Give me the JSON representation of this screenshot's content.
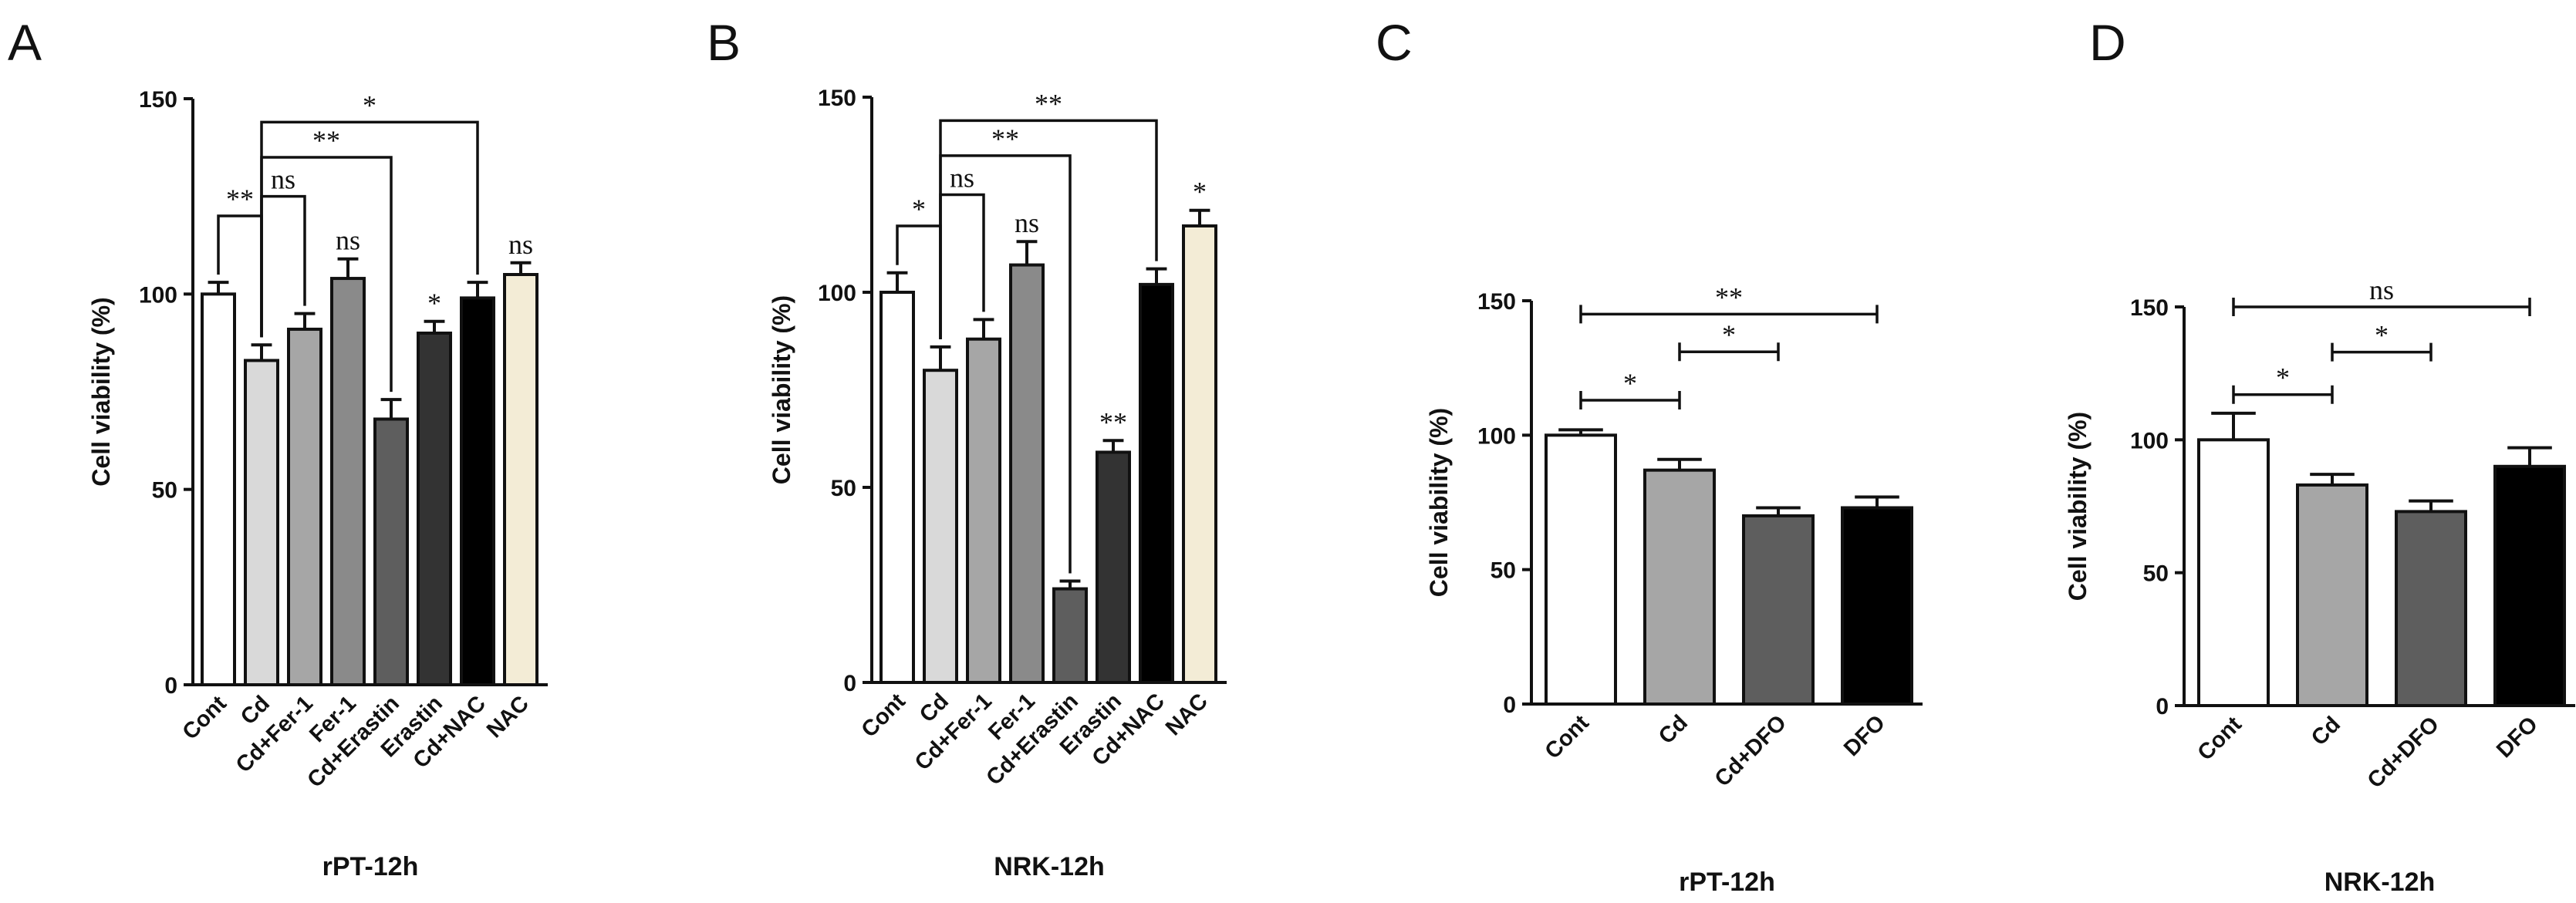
{
  "chart_data": [
    {
      "type": "bar",
      "panel_label": "A",
      "title": "",
      "xlabel": "rPT-12h",
      "ylabel": "Cell viability (%)",
      "ylim": [
        0,
        150
      ],
      "yticks": [
        0,
        50,
        100,
        150
      ],
      "grid": false,
      "categories": [
        "Cont",
        "Cd",
        "Cd+Fer-1",
        "Fer-1",
        "Cd+Erastin",
        "Erastin",
        "Cd+NAC",
        "NAC"
      ],
      "values": [
        100,
        83,
        91,
        104,
        68,
        90,
        99,
        105
      ],
      "errors": [
        3,
        4,
        4,
        5,
        5,
        3,
        4,
        3
      ],
      "colors": [
        "#ffffff",
        "#d9d9d9",
        "#a6a6a6",
        "#8a8a8a",
        "#5e5e5e",
        "#333333",
        "#000000",
        "#f3ecd6"
      ],
      "bar_annotations": [
        "",
        "",
        "",
        "ns",
        "",
        "*",
        "",
        "ns"
      ],
      "comparisons": [
        {
          "from": "Cont",
          "to": "Cd",
          "label": "**",
          "y": 120
        },
        {
          "from": "Cd",
          "to": "Cd+Fer-1",
          "label": "ns",
          "y": 125
        },
        {
          "from": "Cd",
          "to": "Cd+Erastin",
          "label": "**",
          "y": 135
        },
        {
          "from": "Cd",
          "to": "Cd+NAC",
          "label": "*",
          "y": 144
        }
      ]
    },
    {
      "type": "bar",
      "panel_label": "B",
      "title": "",
      "xlabel": "NRK-12h",
      "ylabel": "Cell viability (%)",
      "ylim": [
        0,
        150
      ],
      "yticks": [
        0,
        50,
        100,
        150
      ],
      "grid": false,
      "categories": [
        "Cont",
        "Cd",
        "Cd+Fer-1",
        "Fer-1",
        "Cd+Erastin",
        "Erastin",
        "Cd+NAC",
        "NAC"
      ],
      "values": [
        100,
        80,
        88,
        107,
        24,
        59,
        102,
        117
      ],
      "errors": [
        5,
        6,
        5,
        6,
        2,
        3,
        4,
        4
      ],
      "colors": [
        "#ffffff",
        "#d9d9d9",
        "#a6a6a6",
        "#8a8a8a",
        "#5e5e5e",
        "#333333",
        "#000000",
        "#f3ecd6"
      ],
      "bar_annotations": [
        "",
        "",
        "",
        "ns",
        "",
        "**",
        "",
        "*"
      ],
      "comparisons": [
        {
          "from": "Cont",
          "to": "Cd",
          "label": "*",
          "y": 117
        },
        {
          "from": "Cd",
          "to": "Cd+Fer-1",
          "label": "ns",
          "y": 125
        },
        {
          "from": "Cd",
          "to": "Cd+Erastin",
          "label": "**",
          "y": 135
        },
        {
          "from": "Cd",
          "to": "Cd+NAC",
          "label": "**",
          "y": 144
        }
      ]
    },
    {
      "type": "bar",
      "panel_label": "C",
      "title": "",
      "xlabel": "rPT-12h",
      "ylabel": "Cell viability (%)",
      "ylim": [
        0,
        150
      ],
      "yticks": [
        0,
        50,
        100,
        150
      ],
      "grid": false,
      "categories": [
        "Cont",
        "Cd",
        "Cd+DFO",
        "DFO"
      ],
      "values": [
        100,
        87,
        70,
        73
      ],
      "errors": [
        2,
        4,
        3,
        4
      ],
      "colors": [
        "#ffffff",
        "#a6a6a6",
        "#5e5e5e",
        "#000000"
      ],
      "bar_annotations": [
        "",
        "",
        "",
        ""
      ],
      "comparisons": [
        {
          "from": "Cont",
          "to": "Cd",
          "label": "*",
          "y": 113,
          "style": "capped"
        },
        {
          "from": "Cd",
          "to": "Cd+DFO",
          "label": "*",
          "y": 131,
          "style": "capped"
        },
        {
          "from": "Cont",
          "to": "DFO",
          "label": "**",
          "y": 145,
          "style": "capped"
        }
      ]
    },
    {
      "type": "bar",
      "panel_label": "D",
      "title": "",
      "xlabel": "NRK-12h",
      "ylabel": "Cell viability (%)",
      "ylim": [
        0,
        150
      ],
      "yticks": [
        0,
        50,
        100,
        150
      ],
      "grid": false,
      "categories": [
        "Cont",
        "Cd",
        "Cd+DFO",
        "DFO"
      ],
      "values": [
        100,
        83,
        73,
        90
      ],
      "errors": [
        10,
        4,
        4,
        7
      ],
      "colors": [
        "#ffffff",
        "#a6a6a6",
        "#5e5e5e",
        "#000000"
      ],
      "bar_annotations": [
        "",
        "",
        "",
        ""
      ],
      "comparisons": [
        {
          "from": "Cont",
          "to": "Cd",
          "label": "*",
          "y": 117,
          "style": "capped"
        },
        {
          "from": "Cd",
          "to": "Cd+DFO",
          "label": "*",
          "y": 133,
          "style": "capped"
        },
        {
          "from": "Cont",
          "to": "DFO",
          "label": "ns",
          "y": 150,
          "style": "capped"
        }
      ]
    }
  ]
}
